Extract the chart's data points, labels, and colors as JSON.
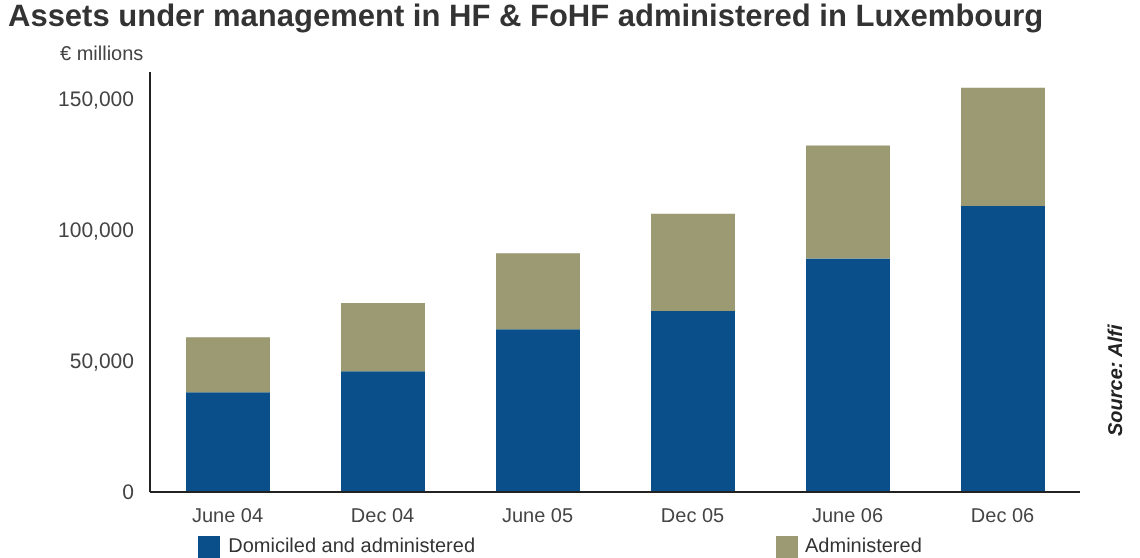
{
  "chart_data": {
    "type": "bar",
    "title": "Assets under management in HF & FoHF administered in Luxembourg",
    "ylabel": "€ millions",
    "categories": [
      "June 04",
      "Dec 04",
      "June 05",
      "Dec 05",
      "June 06",
      "Dec 06"
    ],
    "stacked": true,
    "series": [
      {
        "name": "Domiciled and administered",
        "color": "#0b4f8a",
        "values": [
          38000,
          46000,
          62000,
          69000,
          89000,
          109000
        ]
      },
      {
        "name": "Administered",
        "color": "#9c9a72",
        "values": [
          21000,
          26000,
          29000,
          37000,
          43000,
          45000
        ]
      }
    ],
    "ylim": [
      0,
      160000
    ],
    "yticks": [
      0,
      {
        "value": 50000,
        "label": "50,000"
      },
      {
        "value": 100000,
        "label": "100,000"
      },
      {
        "value": 150000,
        "label": "150,000"
      }
    ],
    "grid": false,
    "legend": "bottom",
    "annotations": [
      "Source: Alfi"
    ]
  }
}
